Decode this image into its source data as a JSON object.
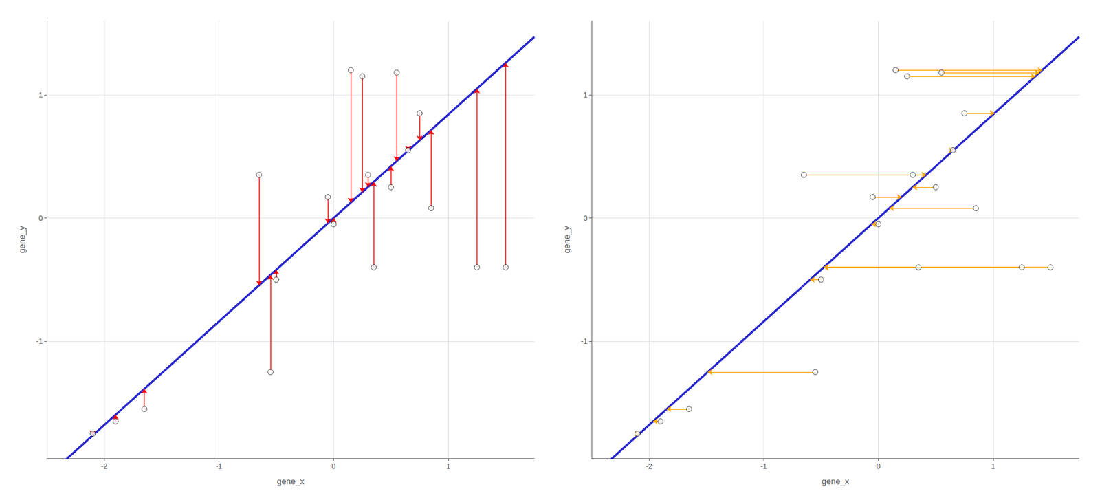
{
  "chart_data": [
    {
      "type": "scatter",
      "xlabel": "gene_x",
      "ylabel": "gene_y",
      "x": [
        -2.1,
        -1.9,
        -1.65,
        -0.65,
        -0.55,
        -0.5,
        -0.05,
        0.0,
        0.15,
        0.25,
        0.3,
        0.35,
        0.5,
        0.55,
        0.65,
        0.75,
        0.85,
        1.25,
        1.5
      ],
      "values": [
        -1.75,
        -1.65,
        -1.55,
        0.35,
        -1.25,
        -0.5,
        0.17,
        -0.05,
        1.2,
        1.15,
        0.35,
        -0.4,
        0.25,
        1.18,
        0.55,
        0.85,
        0.08,
        -0.4,
        -0.4
      ],
      "fit": {
        "slope": 0.84,
        "intercept": 0.0,
        "color": "#2727CC"
      },
      "residuals": {
        "direction": "vertical",
        "color": "red"
      },
      "xlim": [
        -2.5,
        1.75
      ],
      "ylim": [
        -1.95,
        1.6
      ],
      "xticks": [
        -2,
        -1,
        0,
        1
      ],
      "yticks": [
        -1,
        0,
        1
      ],
      "grid": true
    },
    {
      "type": "scatter",
      "xlabel": "gene_x",
      "ylabel": "gene_y",
      "x": [
        -2.1,
        -1.9,
        -1.65,
        -0.65,
        -0.55,
        -0.5,
        -0.05,
        0.0,
        0.15,
        0.25,
        0.3,
        0.35,
        0.5,
        0.55,
        0.65,
        0.75,
        0.85,
        1.25,
        1.5
      ],
      "values": [
        -1.75,
        -1.65,
        -1.55,
        0.35,
        -1.25,
        -0.5,
        0.17,
        -0.05,
        1.2,
        1.15,
        0.35,
        -0.4,
        0.25,
        1.18,
        0.55,
        0.85,
        0.08,
        -0.4,
        -0.4
      ],
      "fit": {
        "slope": 0.84,
        "intercept": 0.0,
        "color": "#2727CC"
      },
      "residuals": {
        "direction": "horizontal",
        "color": "orange"
      },
      "xlim": [
        -2.5,
        1.75
      ],
      "ylim": [
        -1.95,
        1.6
      ],
      "xticks": [
        -2,
        -1,
        0,
        1
      ],
      "yticks": [
        -1,
        0,
        1
      ],
      "grid": true
    }
  ]
}
